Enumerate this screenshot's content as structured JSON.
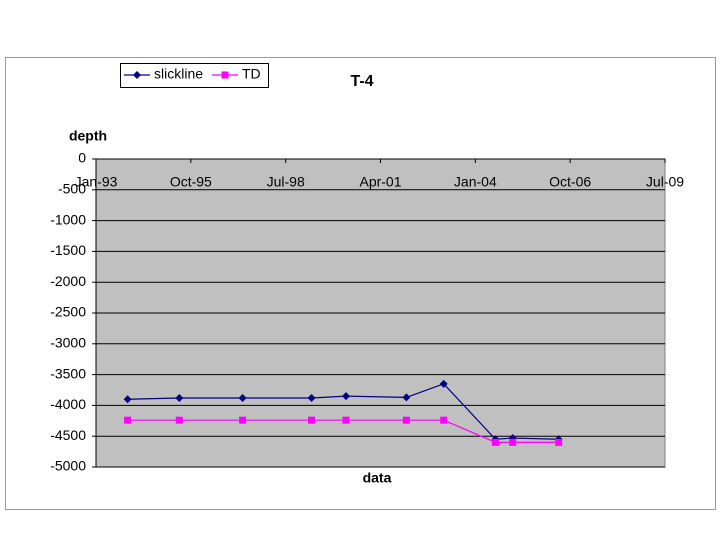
{
  "chart_data": {
    "type": "line",
    "title": "T-4",
    "x_label": "data",
    "y_label": "depth",
    "x": [
      "1993-12",
      "1995-06",
      "1997-04",
      "1999-04",
      "2000-04",
      "2002-01",
      "2003-02",
      "2004-08",
      "2005-02",
      "2006-06"
    ],
    "series": [
      {
        "name": "slickline",
        "color": "#000080",
        "marker": "diamond",
        "values": [
          -3900,
          -3880,
          -3880,
          -3880,
          -3850,
          -3870,
          -3650,
          -4550,
          -4530,
          -4550
        ]
      },
      {
        "name": "TD",
        "color": "#ff00ff",
        "marker": "square",
        "values": [
          -4240,
          -4240,
          -4240,
          -4240,
          -4240,
          -4240,
          -4240,
          -4600,
          -4600,
          -4600
        ]
      }
    ],
    "xlim": [
      "1993-01",
      "2009-07"
    ],
    "xticks": [
      {
        "value": "1993-01",
        "label": "Jan-93"
      },
      {
        "value": "1995-10",
        "label": "Oct-95"
      },
      {
        "value": "1998-07",
        "label": "Jul-98"
      },
      {
        "value": "2001-04",
        "label": "Apr-01"
      },
      {
        "value": "2004-01",
        "label": "Jan-04"
      },
      {
        "value": "2006-10",
        "label": "Oct-06"
      },
      {
        "value": "2009-07",
        "label": "Jul-09"
      }
    ],
    "ylim": [
      -5000,
      0
    ],
    "yticks": [
      0,
      -500,
      -1000,
      -1500,
      -2000,
      -2500,
      -3000,
      -3500,
      -4000,
      -4500,
      -5000
    ],
    "grid": true,
    "legend": "top-left"
  }
}
